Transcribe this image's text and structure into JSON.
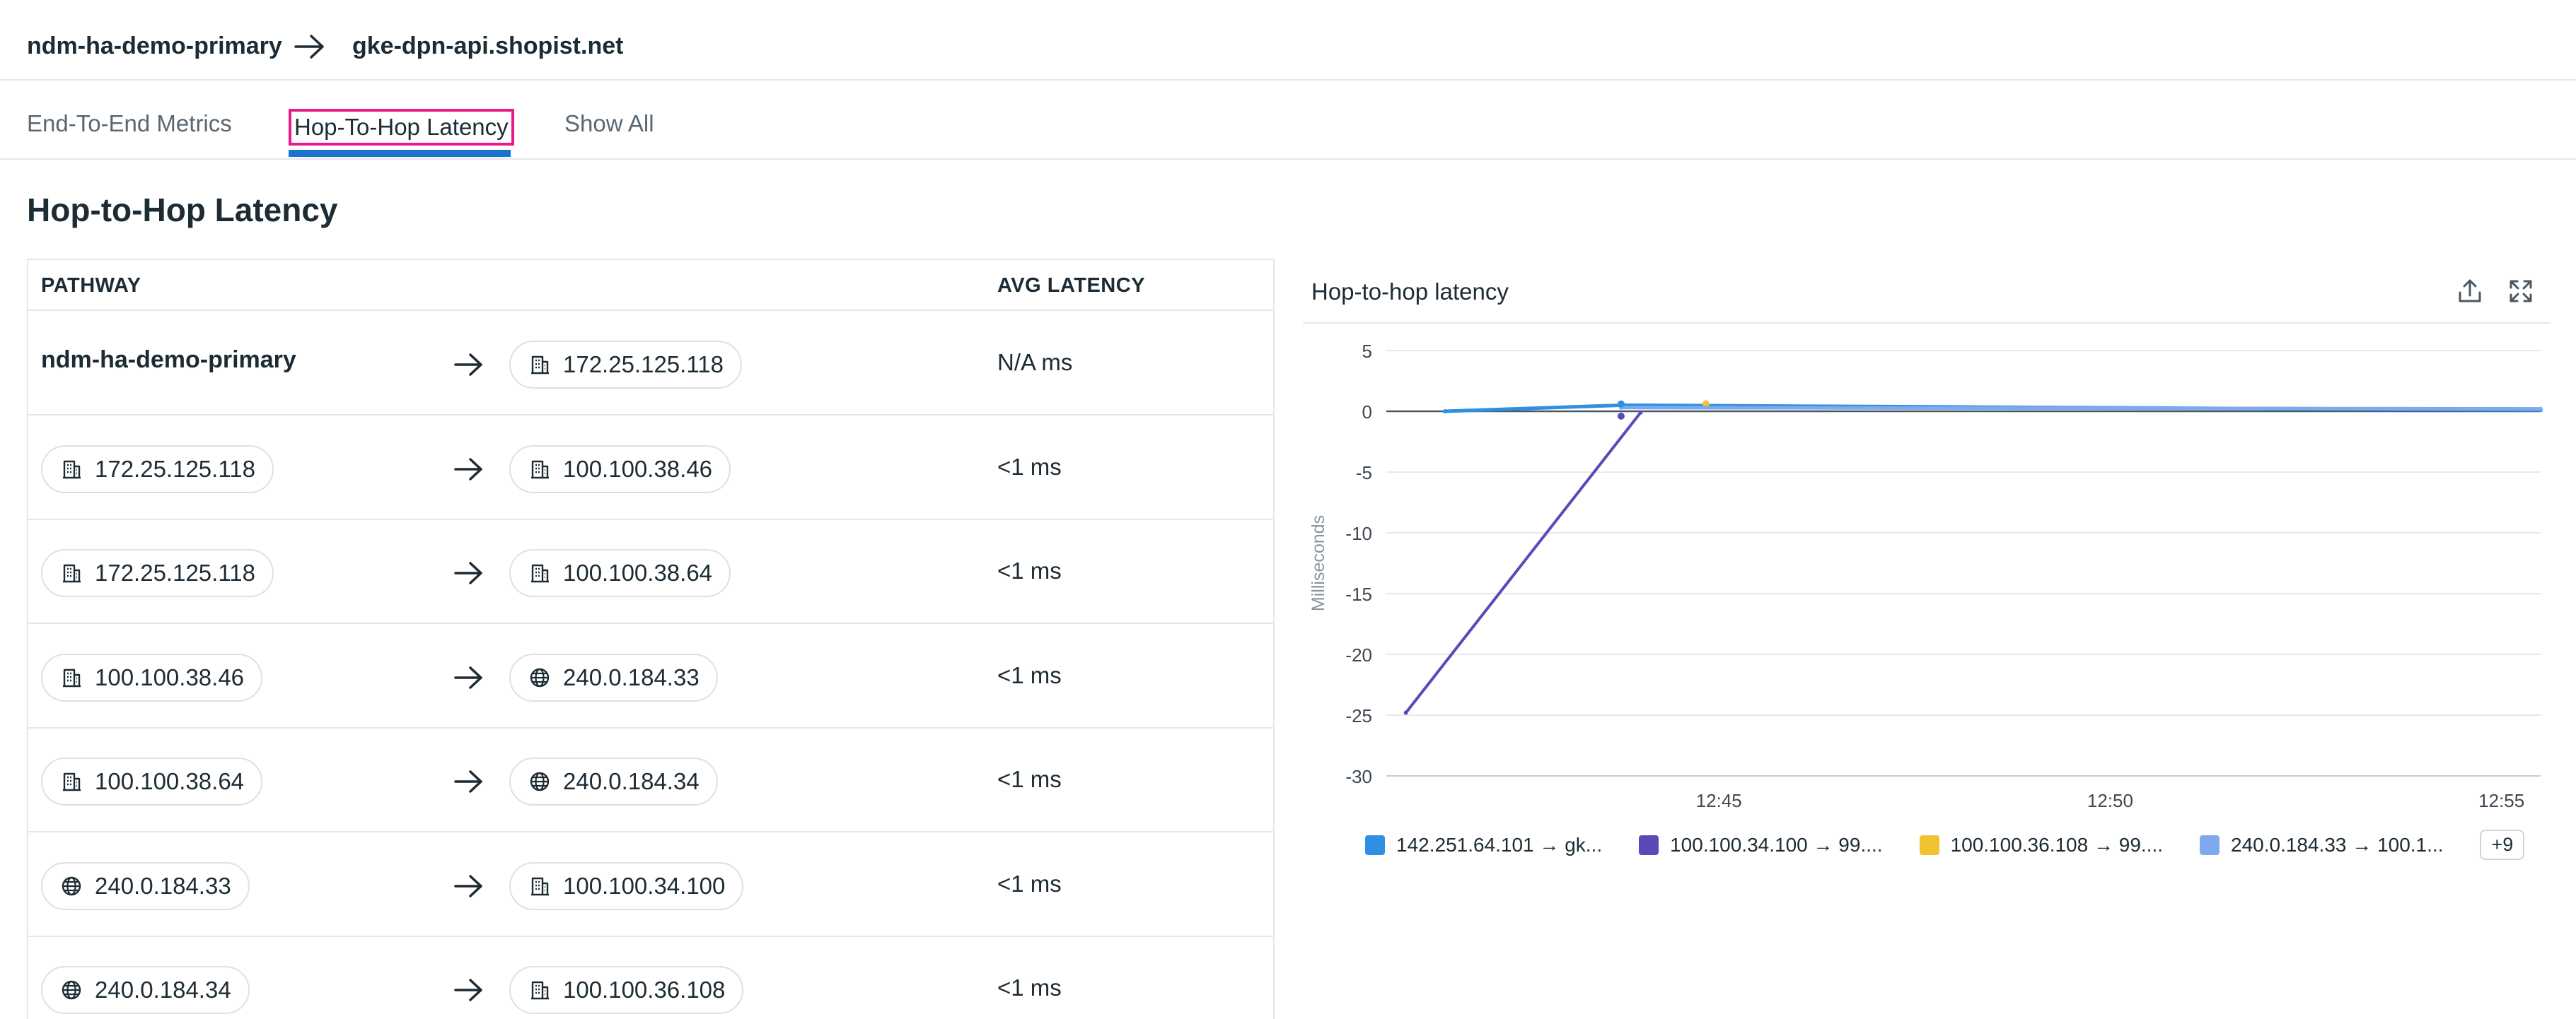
{
  "header": {
    "source": "ndm-ha-demo-primary",
    "destination": "gke-dpn-api.shopist.net"
  },
  "tabs": [
    {
      "label": "End-To-End Metrics"
    },
    {
      "label": "Hop-To-Hop Latency"
    },
    {
      "label": "Show All"
    }
  ],
  "section_title": "Hop-to-Hop Latency",
  "table": {
    "columns": [
      "PATHWAY",
      "AVG LATENCY"
    ],
    "rows": [
      {
        "src": "ndm-ha-demo-primary",
        "src_icon": "none",
        "dst": "172.25.125.118",
        "dst_icon": "building-icon",
        "latency": "N/A ms"
      },
      {
        "src": "172.25.125.118",
        "src_icon": "building-icon",
        "dst": "100.100.38.46",
        "dst_icon": "building-icon",
        "latency": "<1 ms"
      },
      {
        "src": "172.25.125.118",
        "src_icon": "building-icon",
        "dst": "100.100.38.64",
        "dst_icon": "building-icon",
        "latency": "<1 ms"
      },
      {
        "src": "100.100.38.46",
        "src_icon": "building-icon",
        "dst": "240.0.184.33",
        "dst_icon": "globe-icon",
        "latency": "<1 ms"
      },
      {
        "src": "100.100.38.64",
        "src_icon": "building-icon",
        "dst": "240.0.184.34",
        "dst_icon": "globe-icon",
        "latency": "<1 ms"
      },
      {
        "src": "240.0.184.33",
        "src_icon": "globe-icon",
        "dst": "100.100.34.100",
        "dst_icon": "building-icon",
        "latency": "<1 ms"
      },
      {
        "src": "240.0.184.34",
        "src_icon": "globe-icon",
        "dst": "100.100.36.108",
        "dst_icon": "building-icon",
        "latency": "<1 ms"
      }
    ]
  },
  "panel": {
    "title": "Hop-to-hop latency",
    "actions": [
      "export-icon",
      "expand-icon"
    ]
  },
  "chart_data": {
    "type": "line",
    "title": "Hop-to-hop latency",
    "xlabel": "",
    "ylabel": "Milliseconds",
    "ylim": [
      -30,
      5
    ],
    "yticks": [
      5,
      0,
      -5,
      -10,
      -15,
      -20,
      -25,
      -30
    ],
    "xlim": [
      "12:40:45",
      "12:55:30"
    ],
    "xticks": [
      "12:45",
      "12:50",
      "12:55"
    ],
    "grid": true,
    "legend_position": "bottom",
    "series": [
      {
        "name": "142.251.64.101 → gk...",
        "color": "#2f8fe0",
        "points": [
          [
            "12:41:30",
            0
          ],
          [
            "12:43:45",
            0.5
          ],
          [
            "12:55:30",
            0.1
          ]
        ]
      },
      {
        "name": "100.100.34.100 → 99....",
        "color": "#5b49b8",
        "points": [
          [
            "12:41",
            -24.8
          ],
          [
            "12:44",
            -0.1
          ]
        ]
      },
      {
        "name": "100.100.36.108 → 99....",
        "color": "#f2c230",
        "points": [
          [
            "12:44:50",
            0.6
          ]
        ]
      },
      {
        "name": "240.0.184.33 → 100.1...",
        "color": "#7fa9ef",
        "points": [
          [
            "12:43:45",
            0.3
          ],
          [
            "12:55:30",
            0.2
          ]
        ]
      }
    ],
    "legend_more": "+9"
  }
}
